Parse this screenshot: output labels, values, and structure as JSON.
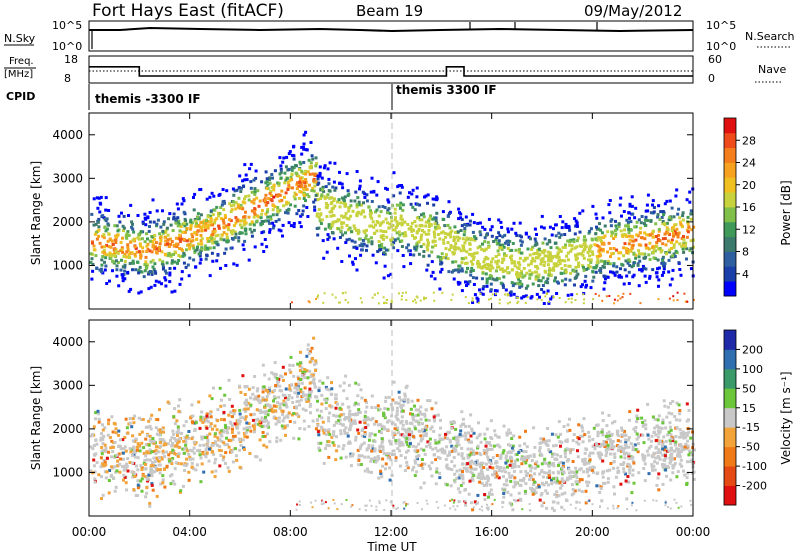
{
  "header": {
    "station": "Fort Hays East (fitACF)",
    "beam": "Beam 19",
    "date": "09/May/2012"
  },
  "top_panels": {
    "nsky_label": "N.Sky",
    "nsearch_label": "N.Search",
    "nsky_ticks": [
      "10^5",
      "10^0"
    ],
    "nsearch_ticks": [
      "10^5",
      "10^0"
    ],
    "freq_label_1": "Freq.",
    "freq_label_2": "[MHz]",
    "freq_ticks": [
      "18",
      "8"
    ],
    "nave_label": "Nave",
    "nave_ticks": [
      "60",
      "0"
    ],
    "cpid_label": "CPID",
    "cpid_segments": [
      "themis -3300 IF",
      "themis 3300 IF"
    ]
  },
  "axes": {
    "x_label": "Time UT",
    "x_ticks": [
      "00:00",
      "04:00",
      "08:00",
      "12:00",
      "16:00",
      "20:00",
      "00:00"
    ],
    "y_label": "Slant Range [km]",
    "y_ticks": [
      "1000",
      "2000",
      "3000",
      "4000"
    ]
  },
  "colorbars": {
    "power": {
      "label": "Power [dB]",
      "ticks": [
        "4",
        "8",
        "12",
        "16",
        "20",
        "24",
        "28"
      ],
      "colors": [
        "#0000ff",
        "#1a3fa8",
        "#2e5fa0",
        "#3c7a6e",
        "#3f9a5a",
        "#7fbf4a",
        "#c8d23c",
        "#f0c020",
        "#f7a21e",
        "#f47d1c",
        "#ee4a1a",
        "#e01010"
      ]
    },
    "velocity": {
      "label": "Velocity [m s⁻¹]",
      "ticks": [
        "200",
        "100",
        "50",
        "15",
        "-15",
        "-50",
        "-100",
        "-200"
      ],
      "colors": [
        "#1f2aa8",
        "#2f6fb0",
        "#3a9a6a",
        "#6cc63a",
        "#c8c8c8",
        "#f2a33a",
        "#f07a18",
        "#e64a14",
        "#e01010"
      ]
    }
  },
  "chart_data": [
    {
      "type": "line",
      "panel": "N.Sky / N.Search",
      "x": [
        "00:00",
        "04:00",
        "08:00",
        "12:00",
        "16:00",
        "20:00",
        "00:00"
      ],
      "series": [],
      "xlim": [
        "00:00",
        "24:00"
      ]
    },
    {
      "type": "line",
      "panel": "Freq. [MHz] / Nave",
      "x": [
        0,
        2,
        2,
        14.2,
        14.2,
        14.9,
        14.9,
        24
      ],
      "series": [
        {
          "values": [
            14,
            14,
            10.6,
            10.6,
            14,
            14,
            10.6,
            10.6
          ]
        }
      ],
      "ylim": [
        8,
        18
      ],
      "xlim": [
        0,
        24
      ]
    },
    {
      "type": "heatmap",
      "panel": "Power",
      "xlim": [
        0,
        24
      ],
      "ylim": [
        0,
        4500
      ],
      "color_range_dB": [
        0,
        30
      ]
    },
    {
      "type": "heatmap",
      "panel": "Velocity",
      "xlim": [
        0,
        24
      ],
      "ylim": [
        0,
        4500
      ],
      "color_range_ms": [
        -250,
        250
      ]
    }
  ]
}
